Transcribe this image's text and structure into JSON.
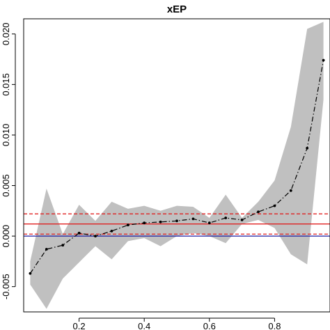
{
  "chart_data": {
    "type": "line",
    "title": "xEP",
    "xlabel": "",
    "ylabel": "",
    "xlim": [
      0.03,
      0.97
    ],
    "ylim": [
      -0.0075,
      0.0215
    ],
    "xticks": [
      0.2,
      0.4,
      0.6,
      0.8
    ],
    "xtick_labels": [
      "0.2",
      "0.4",
      "0.6",
      "0.8"
    ],
    "yticks": [
      -0.005,
      0.0,
      0.005,
      0.01,
      0.015,
      0.02
    ],
    "ytick_labels": [
      "-0.005",
      "0.000",
      "0.005",
      "0.010",
      "0.015",
      "0.020"
    ],
    "grid": false,
    "series": [
      {
        "x": [
          0.05,
          0.1,
          0.15,
          0.2,
          0.25,
          0.3,
          0.35,
          0.4,
          0.45,
          0.5,
          0.55,
          0.6,
          0.65,
          0.7,
          0.75,
          0.8,
          0.85,
          0.9,
          0.95
        ],
        "y": [
          -0.0037,
          -0.0013,
          -0.0009,
          0.0003,
          0.0,
          0.0005,
          0.0011,
          0.0013,
          0.0014,
          0.0015,
          0.0017,
          0.0013,
          0.0018,
          0.0016,
          0.0024,
          0.003,
          0.0045,
          0.0087,
          0.0174
        ],
        "lower": [
          -0.0048,
          -0.0072,
          -0.0042,
          -0.0026,
          -0.001,
          -0.0023,
          -0.0005,
          -0.0002,
          -0.001,
          0.0,
          0.0003,
          0.0,
          -0.0007,
          0.0012,
          0.0016,
          0.0008,
          -0.0018,
          -0.0028,
          0.0135
        ],
        "upper": [
          -0.0025,
          0.0047,
          0.0002,
          0.0031,
          0.0015,
          0.0034,
          0.0027,
          0.003,
          0.0025,
          0.003,
          0.0029,
          0.0018,
          0.0041,
          0.0018,
          0.0034,
          0.0055,
          0.0108,
          0.0205,
          0.0212
        ],
        "color": "#000000",
        "band_color": "#c0c0c0"
      }
    ],
    "reference_lines": [
      {
        "y": 0.0012,
        "style": "solid",
        "color": "#e02020"
      },
      {
        "y": 0.0022,
        "style": "dashed",
        "color": "#e02020"
      },
      {
        "y": 0.0002,
        "style": "dashed",
        "color": "#e02020"
      },
      {
        "y": 0.0,
        "style": "solid",
        "color": "#1a1aa0"
      }
    ]
  }
}
